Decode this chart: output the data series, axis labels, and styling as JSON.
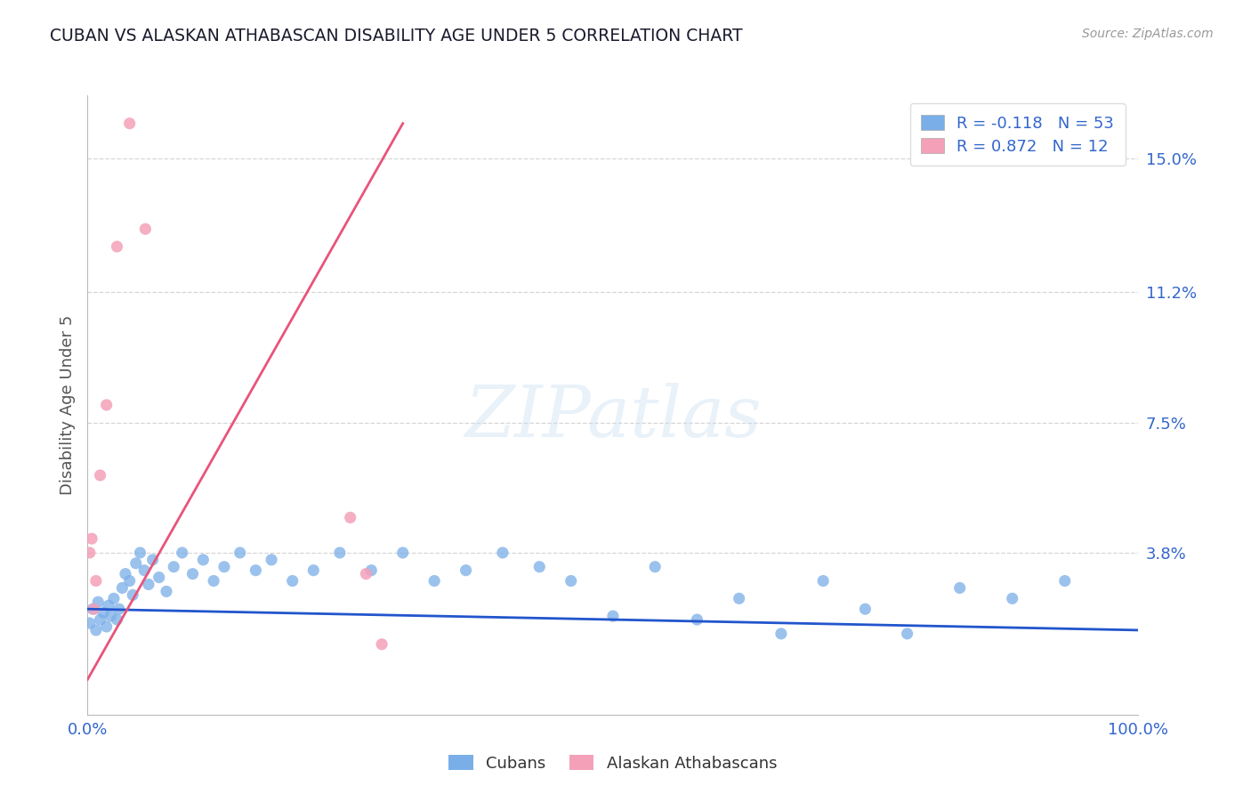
{
  "title": "CUBAN VS ALASKAN ATHABASCAN DISABILITY AGE UNDER 5 CORRELATION CHART",
  "source": "Source: ZipAtlas.com",
  "ylabel": "Disability Age Under 5",
  "ytick_labels": [
    "3.8%",
    "7.5%",
    "11.2%",
    "15.0%"
  ],
  "ytick_values": [
    0.038,
    0.075,
    0.112,
    0.15
  ],
  "xlim": [
    0.0,
    1.0
  ],
  "ylim": [
    -0.008,
    0.168
  ],
  "legend_entries": [
    {
      "label": "R = -0.118   N = 53",
      "color": "#aec6f0"
    },
    {
      "label": "R = 0.872   N = 12",
      "color": "#f4b8c8"
    }
  ],
  "title_color": "#1a1a2e",
  "axis_label_color": "#555555",
  "tick_color": "#3366cc",
  "cuban_color": "#7aaee8",
  "athabascan_color": "#f4a0b8",
  "trendline_cuban_color": "#2255cc",
  "trendline_athabascan_color": "#e8547a",
  "grid_color": "#cccccc",
  "cubans_x": [
    0.002,
    0.005,
    0.008,
    0.01,
    0.012,
    0.015,
    0.018,
    0.02,
    0.022,
    0.025,
    0.028,
    0.03,
    0.033,
    0.036,
    0.04,
    0.043,
    0.046,
    0.05,
    0.054,
    0.058,
    0.062,
    0.068,
    0.075,
    0.082,
    0.09,
    0.1,
    0.11,
    0.12,
    0.13,
    0.145,
    0.16,
    0.175,
    0.195,
    0.215,
    0.24,
    0.27,
    0.3,
    0.33,
    0.36,
    0.395,
    0.43,
    0.46,
    0.5,
    0.54,
    0.58,
    0.62,
    0.66,
    0.7,
    0.74,
    0.78,
    0.83,
    0.88,
    0.93
  ],
  "cubans_y": [
    0.018,
    0.022,
    0.016,
    0.024,
    0.019,
    0.021,
    0.017,
    0.023,
    0.02,
    0.025,
    0.019,
    0.022,
    0.028,
    0.032,
    0.03,
    0.026,
    0.035,
    0.038,
    0.033,
    0.029,
    0.036,
    0.031,
    0.027,
    0.034,
    0.038,
    0.032,
    0.036,
    0.03,
    0.034,
    0.038,
    0.033,
    0.036,
    0.03,
    0.033,
    0.038,
    0.033,
    0.038,
    0.03,
    0.033,
    0.038,
    0.034,
    0.03,
    0.02,
    0.034,
    0.019,
    0.025,
    0.015,
    0.03,
    0.022,
    0.015,
    0.028,
    0.025,
    0.03
  ],
  "athabascan_x": [
    0.002,
    0.004,
    0.006,
    0.012,
    0.018,
    0.028,
    0.04,
    0.055,
    0.008,
    0.25,
    0.265,
    0.28
  ],
  "athabascan_y": [
    0.038,
    0.042,
    0.022,
    0.06,
    0.08,
    0.125,
    0.16,
    0.13,
    0.03,
    0.048,
    0.032,
    0.012
  ],
  "cuban_trend_x": [
    0.0,
    1.0
  ],
  "cuban_trend_y": [
    0.022,
    0.016
  ],
  "athabascan_trend_x": [
    0.0,
    0.3
  ],
  "athabascan_trend_y": [
    0.002,
    0.16
  ]
}
